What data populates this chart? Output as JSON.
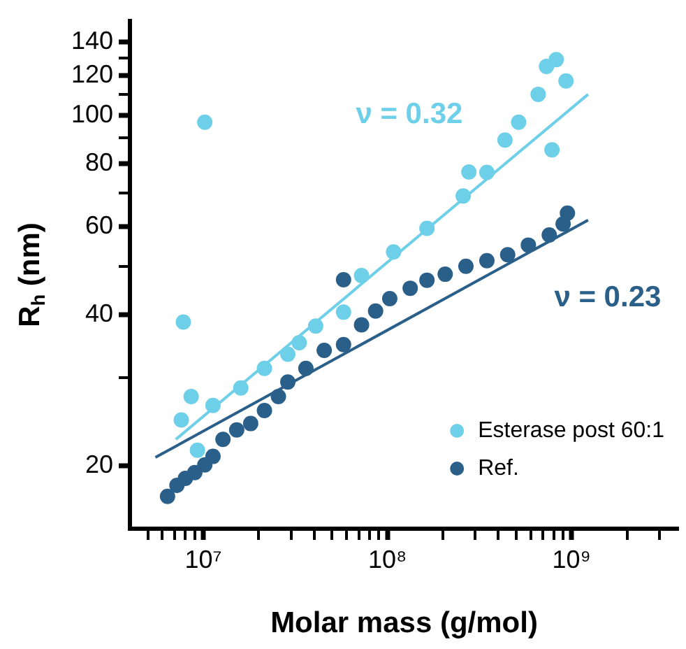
{
  "chart_data": {
    "type": "scatter",
    "xlabel": "Molar mass (g/mol)",
    "ylabel": "R$_{h}$ (nm)",
    "log": "xy",
    "xlim": [
      4000000,
      3800000000
    ],
    "ylim": [
      15,
      154
    ],
    "xticks": [
      {
        "value": 5000000,
        "label": null
      },
      {
        "value": 6000000,
        "label": null
      },
      {
        "value": 7000000,
        "label": null
      },
      {
        "value": 8000000,
        "label": null
      },
      {
        "value": 9000000,
        "label": null
      },
      {
        "value": 10000000,
        "label": "10⁷"
      },
      {
        "value": 20000000,
        "label": null
      },
      {
        "value": 30000000,
        "label": null
      },
      {
        "value": 40000000,
        "label": null
      },
      {
        "value": 50000000,
        "label": null
      },
      {
        "value": 60000000,
        "label": null
      },
      {
        "value": 70000000,
        "label": null
      },
      {
        "value": 80000000,
        "label": null
      },
      {
        "value": 90000000,
        "label": null
      },
      {
        "value": 100000000,
        "label": "10⁸"
      },
      {
        "value": 200000000,
        "label": null
      },
      {
        "value": 300000000,
        "label": null
      },
      {
        "value": 400000000,
        "label": null
      },
      {
        "value": 500000000,
        "label": null
      },
      {
        "value": 600000000,
        "label": null
      },
      {
        "value": 700000000,
        "label": null
      },
      {
        "value": 800000000,
        "label": null
      },
      {
        "value": 900000000,
        "label": null
      },
      {
        "value": 1000000000,
        "label": "10⁹"
      },
      {
        "value": 2000000000,
        "label": null
      },
      {
        "value": 3000000000,
        "label": null
      }
    ],
    "yticks": [
      20,
      {
        "value": 30,
        "label": null
      },
      40,
      {
        "value": 50,
        "label": null
      },
      60,
      {
        "value": 70,
        "label": null
      },
      80,
      {
        "value": 90,
        "label": null
      },
      100,
      {
        "value": 110,
        "label": null
      },
      120,
      {
        "value": 130,
        "label": null
      },
      140
    ],
    "legend": "bottom right",
    "marker": "circle",
    "annotations": [
      "ν = 0.32",
      "ν = 0.23"
    ],
    "series": [
      {
        "name": "Esterase post 60:1",
        "color": "#6dcfe8",
        "x": [
          7600000,
          7800000,
          8600000,
          9300000,
          10200000,
          11300000,
          16000000,
          21500000,
          28800000,
          33200000,
          40800000,
          57800000,
          72400000,
          108000000,
          164000000,
          258000000,
          277000000,
          347000000,
          435000000,
          516000000,
          659000000,
          731000000,
          826000000,
          933000000,
          783000000
        ],
        "values": [
          24.7,
          38.7,
          27.5,
          21.5,
          96.8,
          26.4,
          28.6,
          31.3,
          33.4,
          35.2,
          38.0,
          40.5,
          47.9,
          53.4,
          59.5,
          69.0,
          77,
          76.9,
          89.2,
          96.8,
          110,
          125,
          129,
          117,
          85.3
        ]
      },
      {
        "name": "Ref.",
        "color": "#2a5f8a",
        "x": [
          6400000,
          7200000,
          8000000,
          9000000,
          10200000,
          11300000,
          12800000,
          15200000,
          18100000,
          21500000,
          25600000,
          28800000,
          36100000,
          45400000,
          57800000,
          57800000,
          72400000,
          86300000,
          103000000,
          133000000,
          164000000,
          206000000,
          267000000,
          347000000,
          450000000,
          583000000,
          757000000,
          900000000,
          950000000
        ],
        "values": [
          17.4,
          18.3,
          18.9,
          19.4,
          20.1,
          20.9,
          22.6,
          23.6,
          24.3,
          25.8,
          27.5,
          29.4,
          31.3,
          34.0,
          34.9,
          47.0,
          38.2,
          40.7,
          43.1,
          45.2,
          46.9,
          48.2,
          50.0,
          51.3,
          52.7,
          55.1,
          57.7,
          60.7,
          63.8
        ]
      },
      {
        "type": "line",
        "marker": "none",
        "color": "#6dcfe8",
        "x": [
          7100000,
          1230000000
        ],
        "values": [
          22.6,
          110
        ]
      },
      {
        "type": "line",
        "marker": "none",
        "color": "#2a5f8a",
        "x": [
          5500000,
          1230000000
        ],
        "values": [
          20.8,
          61.8
        ]
      }
    ]
  }
}
